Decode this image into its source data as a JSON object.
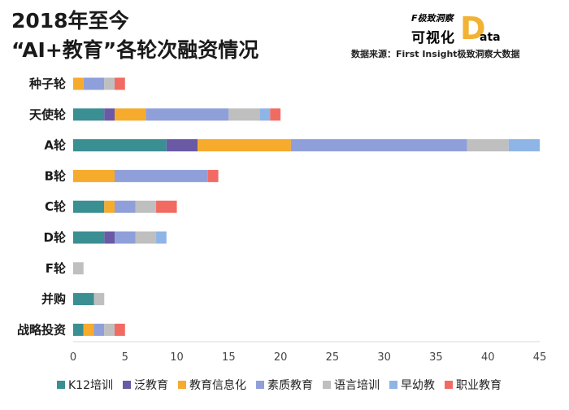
{
  "header": {
    "title_line1": "2018年至今",
    "title_line2": "“AI+教育”各轮次融资情况",
    "brand_top": "F极致洞察",
    "brand_bottom": "可视化",
    "brand_data_d": "D",
    "brand_data_rest": "ata",
    "source": "数据来源：First Insight极致洞察大数据"
  },
  "chart_data": {
    "type": "bar",
    "orientation": "horizontal",
    "stacked": true,
    "categories": [
      "种子轮",
      "天使轮",
      "A轮",
      "B轮",
      "C轮",
      "D轮",
      "F轮",
      "并购",
      "战略投资"
    ],
    "series": [
      {
        "name": "K12培训",
        "color": "#3a8f93",
        "values": [
          0,
          3,
          9,
          0,
          3,
          3,
          0,
          2,
          1
        ]
      },
      {
        "name": "泛教育",
        "color": "#6a5aa5",
        "values": [
          0,
          1,
          3,
          0,
          0,
          1,
          0,
          0,
          0
        ]
      },
      {
        "name": "教育信息化",
        "color": "#f6ab2d",
        "values": [
          1,
          3,
          9,
          4,
          1,
          0,
          0,
          0,
          1
        ]
      },
      {
        "name": "素质教育",
        "color": "#8f9fda",
        "values": [
          2,
          8,
          17,
          9,
          2,
          2,
          0,
          0,
          1
        ]
      },
      {
        "name": "语言培训",
        "color": "#bfbfbf",
        "values": [
          1,
          3,
          4,
          0,
          2,
          2,
          1,
          1,
          1
        ]
      },
      {
        "name": "早幼教",
        "color": "#8fb4e6",
        "values": [
          0,
          1,
          3,
          0,
          0,
          1,
          0,
          0,
          0
        ]
      },
      {
        "name": "职业教育",
        "color": "#f26b62",
        "values": [
          1,
          1,
          0,
          1,
          2,
          0,
          0,
          0,
          1
        ]
      }
    ],
    "xlim": [
      0,
      45
    ],
    "xticks": [
      0,
      5,
      10,
      15,
      20,
      25,
      30,
      35,
      40,
      45
    ],
    "legend_position": "bottom",
    "grid": false
  }
}
